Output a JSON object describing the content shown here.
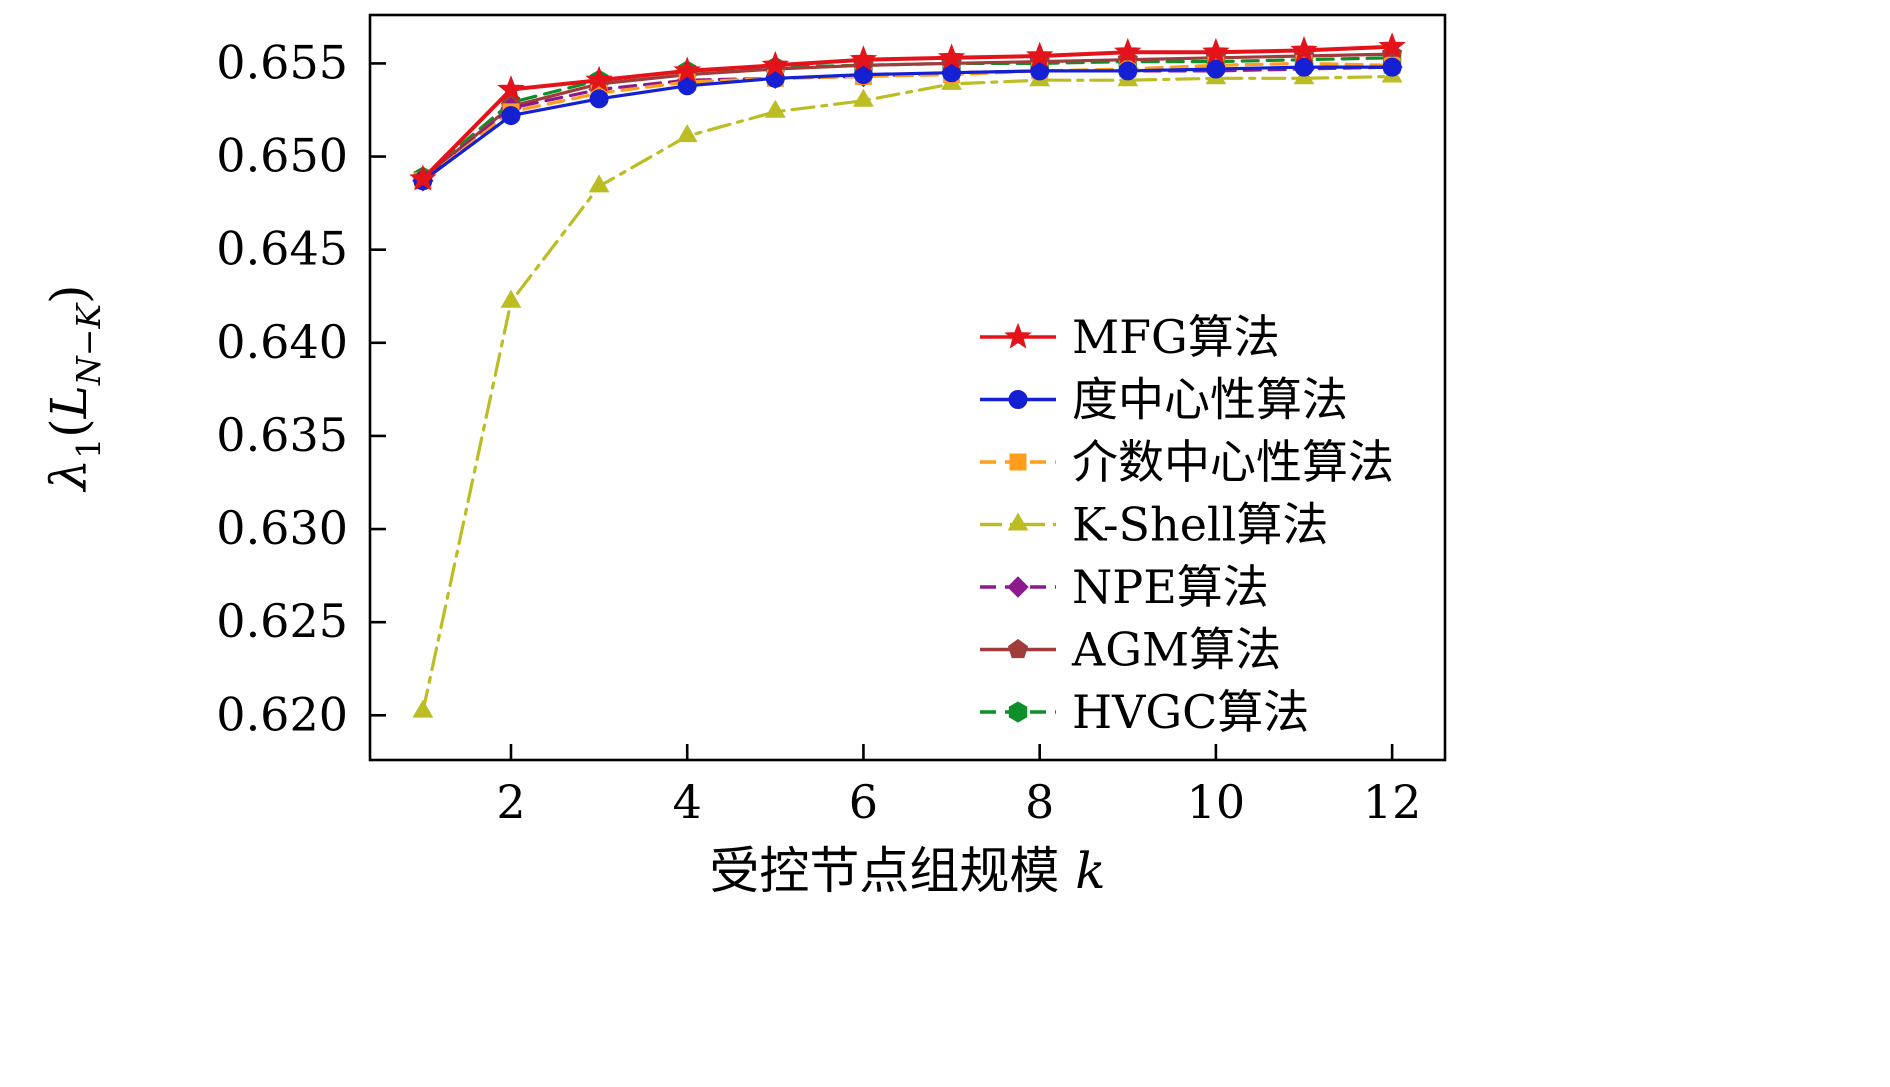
{
  "figure": {
    "background": "#ffffff",
    "frame_color": "#000000"
  },
  "chart_data": {
    "type": "line",
    "title": "",
    "xlabel_segments": [
      {
        "t": "受控节点组规模 ",
        "sub": false,
        "italic": false
      },
      {
        "t": "k",
        "sub": false,
        "italic": true
      }
    ],
    "ylabel_segments": [
      {
        "t": "λ",
        "sub": false,
        "italic": true
      },
      {
        "t": "1",
        "sub": true,
        "italic": false
      },
      {
        "t": "(",
        "sub": false,
        "italic": false
      },
      {
        "t": "L",
        "sub": false,
        "italic": true
      },
      {
        "t": "N−K",
        "sub": true,
        "italic": true
      },
      {
        "t": ")",
        "sub": false,
        "italic": false
      }
    ],
    "xlim": [
      0.4,
      12.6
    ],
    "ylim": [
      0.6176,
      0.6576
    ],
    "grid": false,
    "legend_position": "right-center",
    "x_ticks": [
      {
        "v": 2,
        "label": "2"
      },
      {
        "v": 4,
        "label": "4"
      },
      {
        "v": 6,
        "label": "6"
      },
      {
        "v": 8,
        "label": "8"
      },
      {
        "v": 10,
        "label": "10"
      },
      {
        "v": 12,
        "label": "12"
      }
    ],
    "y_ticks": [
      {
        "v": 0.62,
        "label": "0.620"
      },
      {
        "v": 0.625,
        "label": "0.625"
      },
      {
        "v": 0.63,
        "label": "0.630"
      },
      {
        "v": 0.635,
        "label": "0.635"
      },
      {
        "v": 0.64,
        "label": "0.640"
      },
      {
        "v": 0.645,
        "label": "0.645"
      },
      {
        "v": 0.65,
        "label": "0.650"
      },
      {
        "v": 0.655,
        "label": "0.655"
      }
    ],
    "x": [
      1,
      2,
      3,
      4,
      5,
      6,
      7,
      8,
      9,
      10,
      11,
      12
    ],
    "series": [
      {
        "name": "MFG算法",
        "color": "#e4131a",
        "marker": "star",
        "dash": "solid",
        "width": 4.0,
        "values": [
          0.6488,
          0.6536,
          0.6541,
          0.6546,
          0.6549,
          0.6552,
          0.6553,
          0.6554,
          0.6556,
          0.6556,
          0.6557,
          0.6559
        ]
      },
      {
        "name": "度中心性算法",
        "color": "#1420d2",
        "marker": "circle",
        "dash": "solid",
        "width": 3.2,
        "values": [
          0.6487,
          0.6522,
          0.6531,
          0.6538,
          0.6542,
          0.6544,
          0.6545,
          0.6546,
          0.6546,
          0.6547,
          0.6548,
          0.6548
        ]
      },
      {
        "name": "介数中心性算法",
        "color": "#ff9d1e",
        "marker": "square",
        "dash": "dashed",
        "width": 3.2,
        "values": [
          0.6487,
          0.6524,
          0.6534,
          0.654,
          0.6542,
          0.6543,
          0.6544,
          0.6546,
          0.6547,
          0.6549,
          0.655,
          0.6549
        ]
      },
      {
        "name": "K-Shell算法",
        "color": "#bcbd22",
        "marker": "triangle",
        "dash": "dashdot",
        "width": 3.2,
        "values": [
          0.6202,
          0.6422,
          0.6484,
          0.6511,
          0.6524,
          0.653,
          0.6539,
          0.6541,
          0.6541,
          0.6542,
          0.6542,
          0.6543
        ]
      },
      {
        "name": "NPE算法",
        "color": "#8d1a8d",
        "marker": "diamond",
        "dash": "dashed",
        "width": 3.2,
        "values": [
          0.6487,
          0.6526,
          0.6536,
          0.6541,
          0.6542,
          0.6543,
          0.6545,
          0.6546,
          0.6546,
          0.6546,
          0.6547,
          0.6548
        ]
      },
      {
        "name": "AGM算法",
        "color": "#a03c3c",
        "marker": "pentagon",
        "dash": "solid",
        "width": 3.2,
        "values": [
          0.6488,
          0.6527,
          0.6539,
          0.6544,
          0.6547,
          0.6549,
          0.655,
          0.6551,
          0.6552,
          0.6553,
          0.6554,
          0.6555
        ]
      },
      {
        "name": "HVGC算法",
        "color": "#0f8f2a",
        "marker": "hexagon",
        "dash": "dashed",
        "width": 3.2,
        "values": [
          0.6489,
          0.6529,
          0.6541,
          0.6546,
          0.6548,
          0.6549,
          0.655,
          0.655,
          0.6551,
          0.6551,
          0.6552,
          0.6553
        ]
      }
    ]
  }
}
